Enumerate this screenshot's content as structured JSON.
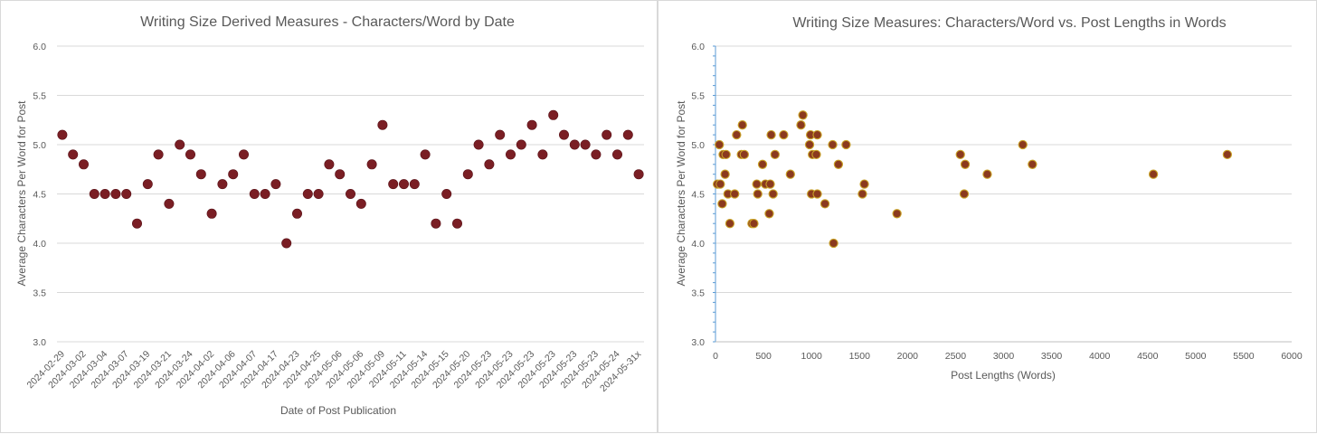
{
  "chart_data": [
    {
      "type": "scatter",
      "title": "Writing Size Derived Measures - Characters/Word by Date",
      "xlabel": "Date of Post Publication",
      "ylabel": "Average Characters Per Word for Post",
      "ylim": [
        3.0,
        6.0
      ],
      "yticks": [
        "3.0",
        "3.5",
        "4.0",
        "4.5",
        "5.0",
        "5.5",
        "6.0"
      ],
      "xtick_labels": [
        "2024-02-29",
        "2024-03-02",
        "2024-03-04",
        "2024-03-07",
        "2024-03-19",
        "2024-03-21",
        "2024-03-24",
        "2024-04-02",
        "2024-04-06",
        "2024-04-07",
        "2024-04-17",
        "2024-04-23",
        "2024-04-25",
        "2024-05-06",
        "2024-05-06",
        "2024-05-09",
        "2024-05-11",
        "2024-05-14",
        "2024-05-15",
        "2024-05-20",
        "2024-05-23",
        "2024-05-23",
        "2024-05-23",
        "2024-05-23",
        "2024-05-23",
        "2024-05-23",
        "2024-05-24",
        "2024-05-31x"
      ],
      "marker_color": "#7a1e24",
      "grid": true,
      "values": [
        5.1,
        4.9,
        4.8,
        4.5,
        4.5,
        4.5,
        4.5,
        4.2,
        4.6,
        4.9,
        4.4,
        5.0,
        4.9,
        4.7,
        4.3,
        4.6,
        4.7,
        4.9,
        4.5,
        4.5,
        4.6,
        4.0,
        4.3,
        4.5,
        4.5,
        4.8,
        4.7,
        4.5,
        4.4,
        4.8,
        5.2,
        4.6,
        4.6,
        4.6,
        4.9,
        4.2,
        4.5,
        4.2,
        4.7,
        5.0,
        4.8,
        5.1,
        4.9,
        5.0,
        5.2,
        4.9,
        5.3,
        5.1,
        5.0,
        5.0,
        4.9,
        5.1,
        4.9,
        5.1,
        4.7
      ]
    },
    {
      "type": "scatter",
      "title": "Writing Size Measures: Characters/Word vs. Post Lengths in Words",
      "xlabel": "Post Lengths (Words)",
      "ylabel": "Average Characters Per Word for Post",
      "xlim": [
        0,
        6000
      ],
      "ylim": [
        3.0,
        6.0
      ],
      "xticks": [
        "0",
        "500",
        "1000",
        "1500",
        "2000",
        "2500",
        "3000",
        "3500",
        "4000",
        "4500",
        "5000",
        "5500",
        "6000"
      ],
      "yticks": [
        "3.0",
        "3.5",
        "4.0",
        "4.5",
        "5.0",
        "5.5",
        "6.0"
      ],
      "marker_color": "#8b3a1e",
      "marker_edge_color": "#c9a227",
      "grid": true,
      "points": [
        {
          "x": 20,
          "y": 4.6
        },
        {
          "x": 40,
          "y": 5.0
        },
        {
          "x": 50,
          "y": 4.6
        },
        {
          "x": 70,
          "y": 4.4
        },
        {
          "x": 80,
          "y": 4.9
        },
        {
          "x": 100,
          "y": 4.7
        },
        {
          "x": 110,
          "y": 4.9
        },
        {
          "x": 130,
          "y": 4.5
        },
        {
          "x": 150,
          "y": 4.2
        },
        {
          "x": 200,
          "y": 4.5
        },
        {
          "x": 220,
          "y": 5.1
        },
        {
          "x": 270,
          "y": 4.9
        },
        {
          "x": 280,
          "y": 5.2
        },
        {
          "x": 300,
          "y": 4.9
        },
        {
          "x": 380,
          "y": 4.2
        },
        {
          "x": 400,
          "y": 4.2
        },
        {
          "x": 430,
          "y": 4.6
        },
        {
          "x": 440,
          "y": 4.5
        },
        {
          "x": 490,
          "y": 4.8
        },
        {
          "x": 520,
          "y": 4.6
        },
        {
          "x": 560,
          "y": 4.3
        },
        {
          "x": 570,
          "y": 4.6
        },
        {
          "x": 580,
          "y": 5.1
        },
        {
          "x": 600,
          "y": 4.5
        },
        {
          "x": 620,
          "y": 4.9
        },
        {
          "x": 710,
          "y": 5.1
        },
        {
          "x": 780,
          "y": 4.7
        },
        {
          "x": 890,
          "y": 5.2
        },
        {
          "x": 910,
          "y": 5.3
        },
        {
          "x": 980,
          "y": 5.0
        },
        {
          "x": 990,
          "y": 5.1
        },
        {
          "x": 1000,
          "y": 4.5
        },
        {
          "x": 1010,
          "y": 4.9
        },
        {
          "x": 1050,
          "y": 4.9
        },
        {
          "x": 1060,
          "y": 5.1
        },
        {
          "x": 1060,
          "y": 4.5
        },
        {
          "x": 1140,
          "y": 4.4
        },
        {
          "x": 1220,
          "y": 5.0
        },
        {
          "x": 1230,
          "y": 4.0
        },
        {
          "x": 1280,
          "y": 4.8
        },
        {
          "x": 1360,
          "y": 5.0
        },
        {
          "x": 1530,
          "y": 4.5
        },
        {
          "x": 1550,
          "y": 4.6
        },
        {
          "x": 1890,
          "y": 4.3
        },
        {
          "x": 2550,
          "y": 4.9
        },
        {
          "x": 2590,
          "y": 4.5
        },
        {
          "x": 2600,
          "y": 4.8
        },
        {
          "x": 2830,
          "y": 4.7
        },
        {
          "x": 3200,
          "y": 5.0
        },
        {
          "x": 3300,
          "y": 4.8
        },
        {
          "x": 4560,
          "y": 4.7
        },
        {
          "x": 5330,
          "y": 4.9
        }
      ]
    }
  ]
}
